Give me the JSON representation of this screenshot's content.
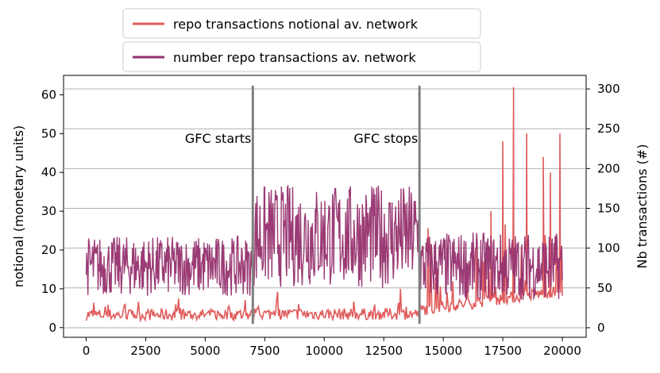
{
  "chart_data": {
    "type": "line",
    "title": "",
    "xlabel": "",
    "ylabel_left": "notional (monetary units)",
    "ylabel_right": "Nb transactions (#)",
    "xlim": [
      -950,
      21000
    ],
    "ylim_left": [
      -2.5,
      65
    ],
    "ylim_right": [
      -12,
      317
    ],
    "x_ticks": [
      0,
      2500,
      5000,
      7500,
      10000,
      12500,
      15000,
      17500,
      20000
    ],
    "y_ticks_left": [
      0,
      10,
      20,
      30,
      40,
      50,
      60
    ],
    "y_ticks_right": [
      0,
      50,
      100,
      150,
      200,
      250,
      300
    ],
    "grid": "horizontal (right axis)",
    "series": [
      {
        "name": "repo transactions notional av. network",
        "axis": "left",
        "color": "#e05c5c",
        "segments": [
          {
            "x_range": [
              0,
              7000
            ],
            "baseline": 1.8,
            "max": 8
          },
          {
            "x_range": [
              7000,
              14000
            ],
            "baseline": 2.0,
            "max": 12
          },
          {
            "x_range": [
              14000,
              20000
            ],
            "baseline": 4,
            "max": 62
          }
        ],
        "spikes": [
          {
            "x": 17000,
            "y": 30
          },
          {
            "x": 17500,
            "y": 48
          },
          {
            "x": 17950,
            "y": 62
          },
          {
            "x": 18500,
            "y": 50
          },
          {
            "x": 19200,
            "y": 44
          },
          {
            "x": 19500,
            "y": 40
          },
          {
            "x": 19900,
            "y": 50
          }
        ]
      },
      {
        "name": "number repo transactions av. network",
        "axis": "right",
        "color": "#96306e",
        "segments": [
          {
            "x_range": [
              0,
              7000
            ],
            "low": 40,
            "high": 115
          },
          {
            "x_range": [
              7000,
              14000
            ],
            "low": 50,
            "high": 180
          },
          {
            "x_range": [
              14000,
              20000
            ],
            "low": 35,
            "high": 120
          }
        ]
      }
    ],
    "vertical_lines": [
      {
        "x": 7000,
        "label": "GFC starts",
        "color": "#808080"
      },
      {
        "x": 14000,
        "label": "GFC stops",
        "color": "#808080"
      }
    ],
    "legend_placement": "top-center (above plot)"
  }
}
